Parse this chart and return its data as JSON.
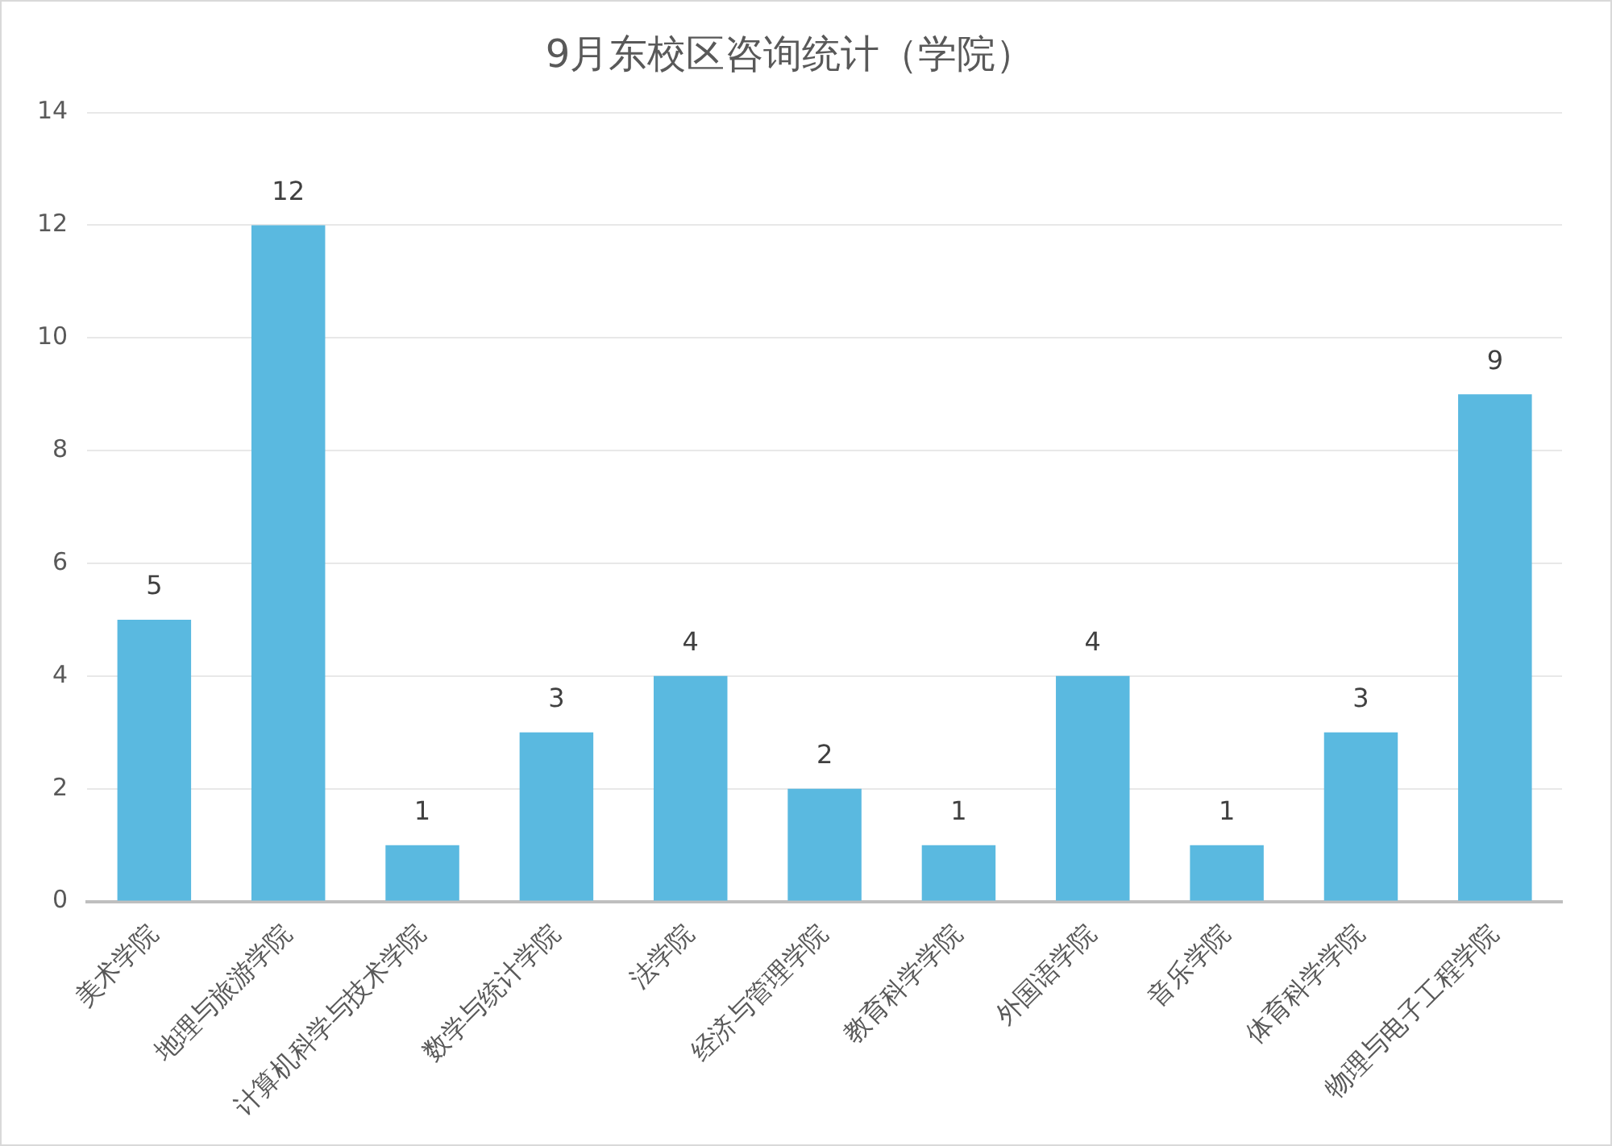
{
  "chart_data": {
    "type": "bar",
    "title": "9月东校区咨询统计（学院）",
    "categories": [
      "美术学院",
      "地理与旅游学院",
      "计算机科学与技术学院",
      "数学与统计学院",
      "法学院",
      "经济与管理学院",
      "教育科学学院",
      "外国语学院",
      "音乐学院",
      "体育科学学院",
      "物理与电子工程学院"
    ],
    "values": [
      5,
      12,
      1,
      3,
      4,
      2,
      1,
      4,
      1,
      3,
      9
    ],
    "color": "#5ab9e0",
    "ylim": [
      0,
      14
    ],
    "yticks": [
      0,
      2,
      4,
      6,
      8,
      10,
      12,
      14
    ],
    "grid": "y",
    "legend": false,
    "data_labels": true
  }
}
